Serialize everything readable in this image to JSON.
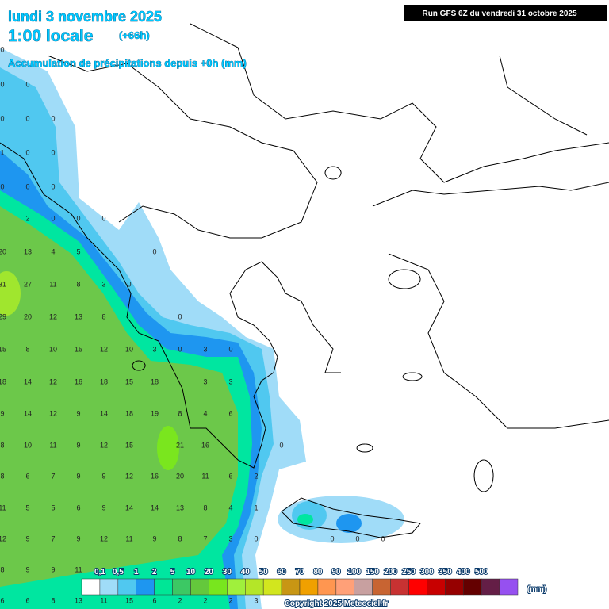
{
  "header": {
    "date": "lundi 3 novembre 2025",
    "local_time": "1:00 locale",
    "offset": "(+66h)",
    "subtitle": "Accumulation de précipitations depuis +0h (mm)",
    "run": "Run GFS 6Z du vendredi 31 octobre 2025"
  },
  "grid": {
    "rows": [
      [
        "0"
      ],
      [
        "0",
        "0"
      ],
      [
        "0",
        "0",
        "0"
      ],
      [
        "1",
        "0",
        "0"
      ],
      [
        "0",
        "0",
        "0"
      ],
      [
        null,
        "2",
        "0",
        "0",
        "0"
      ],
      [
        "20",
        "13",
        "4",
        "5",
        null,
        null,
        "0"
      ],
      [
        "31",
        "27",
        "11",
        "8",
        "3",
        "0"
      ],
      [
        "29",
        "20",
        "12",
        "13",
        "8",
        null,
        null,
        "0"
      ],
      [
        "15",
        "8",
        "10",
        "15",
        "12",
        "10",
        "3",
        "0",
        "3",
        "0"
      ],
      [
        "18",
        "14",
        "12",
        "16",
        "18",
        "15",
        "18",
        null,
        "3",
        "3"
      ],
      [
        "9",
        "14",
        "12",
        "9",
        "14",
        "18",
        "19",
        "8",
        "4",
        "6"
      ],
      [
        "8",
        "10",
        "11",
        "9",
        "12",
        "15",
        null,
        "21",
        "16",
        null,
        null,
        "0"
      ],
      [
        "8",
        "6",
        "7",
        "9",
        "9",
        "12",
        "16",
        "20",
        "11",
        "6",
        "2"
      ],
      [
        "11",
        "5",
        "5",
        "6",
        "9",
        "14",
        "14",
        "13",
        "8",
        "4",
        "1"
      ],
      [
        "12",
        "9",
        "7",
        "9",
        "12",
        "11",
        "9",
        "8",
        "7",
        "3",
        "0",
        null,
        null,
        "0",
        "0",
        "0"
      ],
      [
        "8",
        "9",
        "9",
        "11"
      ],
      [
        "6",
        "6",
        "8",
        "13",
        "11",
        "15",
        "6",
        "2",
        "2",
        "2",
        "3"
      ]
    ]
  },
  "legend": {
    "unit": "(mm)",
    "colors": [
      "#ffffff",
      "#a0dcf8",
      "#50c8f0",
      "#1e96f0",
      "#00e696",
      "#3cc864",
      "#64c83c",
      "#78e61e",
      "#a0f03c",
      "#b4e628",
      "#d2e61e",
      "#c89614",
      "#f0a000",
      "#ff9650",
      "#ffa078",
      "#c8a0a0",
      "#c86432",
      "#c83232",
      "#ff0000",
      "#c80000",
      "#960000",
      "#640000",
      "#641e46",
      "#9650f0"
    ],
    "labels": [
      "0,1",
      "0,5",
      "1",
      "2",
      "5",
      "10",
      "20",
      "30",
      "40",
      "50",
      "60",
      "70",
      "80",
      "90",
      "100",
      "150",
      "200",
      "250",
      "300",
      "350",
      "400",
      "500"
    ]
  },
  "footer": {
    "copyright": "Copyright 2025 Meteociel.fr"
  }
}
